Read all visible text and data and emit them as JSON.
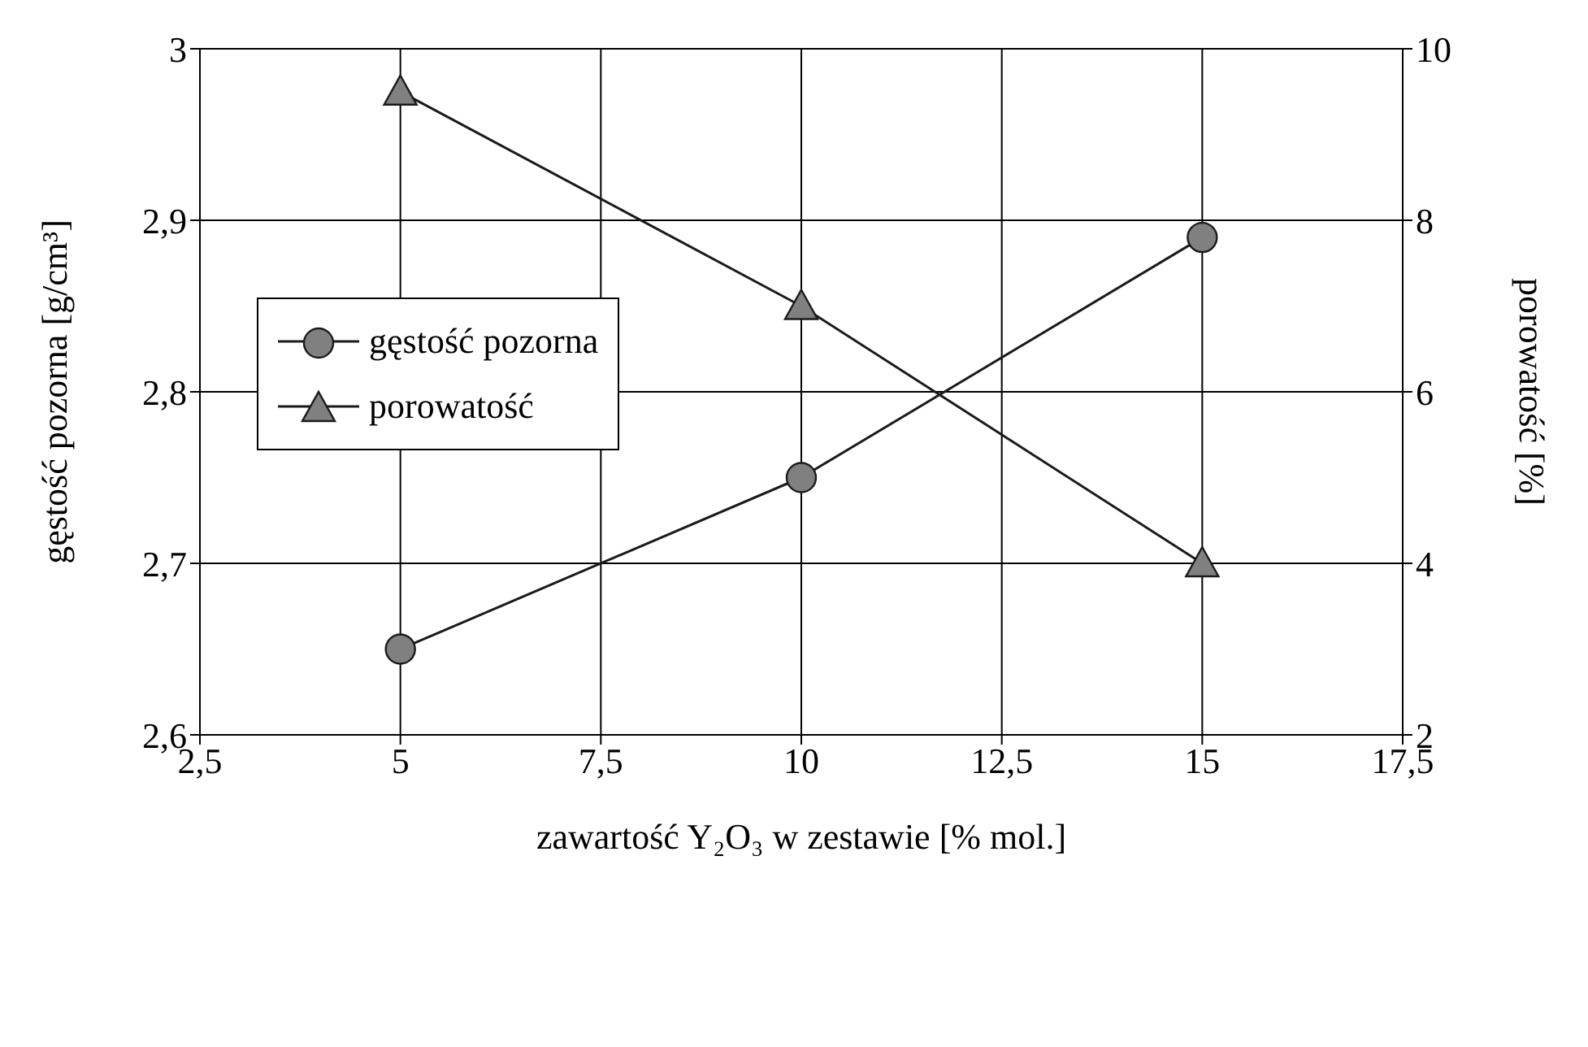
{
  "chart_data": {
    "type": "line",
    "xlabel": "zawartość Y₂O₃ w zestawie [% mol.]",
    "ylabel": "gęstość pozorna [g/cm³]",
    "y2label": "porowatość [%]",
    "x": [
      5,
      10,
      15
    ],
    "series": [
      {
        "name": "gęstość pozorna",
        "color": "#1a1a1a",
        "values": [
          2.65,
          2.75,
          2.89
        ],
        "marker": "circle"
      },
      {
        "name": "porowatość",
        "color": "#1a1a1a",
        "values": [
          9.5,
          7,
          4
        ],
        "axis": "y2",
        "marker": "triangle"
      }
    ],
    "xlim": [
      2.5,
      17.5
    ],
    "xticks": [
      {
        "value": 2.5,
        "label": "2,5"
      },
      5,
      {
        "value": 7.5,
        "label": "7,5"
      },
      10,
      {
        "value": 12.5,
        "label": "12,5"
      },
      15,
      {
        "value": 17.5,
        "label": "17,5"
      }
    ],
    "ylim": [
      2.6,
      3
    ],
    "yticks": [
      {
        "value": 2.6,
        "label": "2,6"
      },
      {
        "value": 2.7,
        "label": "2,7"
      },
      {
        "value": 2.8,
        "label": "2,8"
      },
      {
        "value": 2.9,
        "label": "2,9"
      },
      3
    ],
    "y2lim": [
      2,
      10
    ],
    "y2ticks": [
      2,
      4,
      6,
      8,
      10
    ],
    "grid": true,
    "legend": "left",
    "line_style": "solid"
  }
}
